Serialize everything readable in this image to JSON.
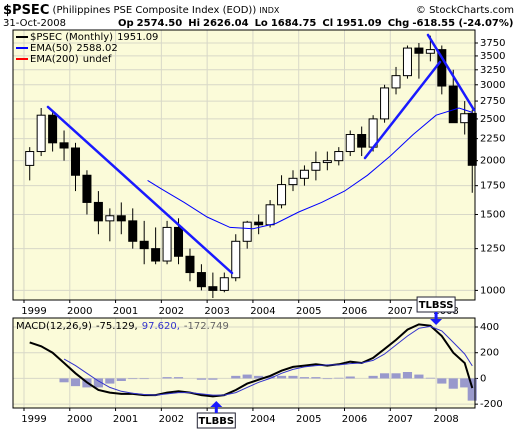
{
  "header": {
    "symbol": "$PSEC",
    "name": "(Philippines PSE Composite Index (EOD))",
    "exchange": "INDX",
    "credit": "© StockCharts.com",
    "date": "31-Oct-2008",
    "quote": [
      {
        "label": "Op",
        "value": "2574.50"
      },
      {
        "label": "Hi",
        "value": "2626.04"
      },
      {
        "label": "Lo",
        "value": "1684.75"
      },
      {
        "label": "Cl",
        "value": "1951.09"
      },
      {
        "label": "Chg",
        "value": "-618.55 (-24.07%)"
      }
    ]
  },
  "chart_data": [
    {
      "type": "candlestick",
      "log_scale": true,
      "grid": true,
      "xlim": [
        1998.76,
        2008.85
      ],
      "xticks": [
        1999,
        2000,
        2001,
        2002,
        2003,
        2004,
        2005,
        2006,
        2007,
        2008
      ],
      "ylim": [
        950,
        4020
      ],
      "yticks": [
        1000,
        1250,
        1500,
        1750,
        2000,
        2250,
        2500,
        2750,
        3000,
        3250,
        3500,
        3750
      ],
      "x": [
        1999.125,
        1999.375,
        1999.625,
        1999.875,
        2000.125,
        2000.375,
        2000.625,
        2000.875,
        2001.125,
        2001.375,
        2001.625,
        2001.875,
        2002.125,
        2002.375,
        2002.625,
        2002.875,
        2003.125,
        2003.375,
        2003.625,
        2003.875,
        2004.125,
        2004.375,
        2004.625,
        2004.875,
        2005.125,
        2005.375,
        2005.625,
        2005.875,
        2006.125,
        2006.375,
        2006.625,
        2006.875,
        2007.125,
        2007.375,
        2007.625,
        2007.875,
        2008.125,
        2008.375,
        2008.625,
        2008.79
      ],
      "open": [
        1950,
        2100,
        2550,
        2200,
        2140,
        1850,
        1600,
        1450,
        1490,
        1450,
        1300,
        1250,
        1170,
        1400,
        1200,
        1100,
        1020,
        1000,
        1070,
        1300,
        1440,
        1420,
        1580,
        1760,
        1820,
        1900,
        1980,
        2000,
        2100,
        2300,
        2150,
        2500,
        2950,
        3150,
        3650,
        3550,
        3620,
        2980,
        2450,
        2574.5
      ],
      "high": [
        2150,
        2650,
        2600,
        2350,
        2200,
        1900,
        1700,
        1550,
        1600,
        1550,
        1450,
        1400,
        1450,
        1470,
        1250,
        1150,
        1100,
        1100,
        1350,
        1450,
        1500,
        1620,
        1850,
        1900,
        1950,
        2100,
        2100,
        2150,
        2350,
        2400,
        2550,
        3000,
        3300,
        3700,
        3750,
        3900,
        3700,
        3250,
        2750,
        2626.04
      ],
      "low": [
        1800,
        2050,
        2100,
        2000,
        1700,
        1500,
        1350,
        1300,
        1350,
        1250,
        1150,
        1150,
        1150,
        1150,
        1050,
        1000,
        960,
        990,
        1050,
        1250,
        1350,
        1400,
        1550,
        1700,
        1750,
        1800,
        1900,
        1950,
        2050,
        2050,
        2100,
        2450,
        2850,
        3100,
        3100,
        3400,
        2850,
        2450,
        2300,
        1684.75
      ],
      "close": [
        2100,
        2550,
        2200,
        2140,
        1850,
        1600,
        1450,
        1490,
        1450,
        1300,
        1250,
        1170,
        1400,
        1200,
        1100,
        1020,
        1000,
        1070,
        1300,
        1440,
        1420,
        1580,
        1760,
        1820,
        1900,
        1980,
        2000,
        2100,
        2300,
        2150,
        2500,
        2950,
        3150,
        3650,
        3550,
        3620,
        2980,
        2450,
        2570,
        1951.09
      ],
      "series": [
        {
          "name": "$PSEC (Monthly)",
          "color": "#000000",
          "value_label": "1951.09"
        },
        {
          "name": "EMA(50)",
          "color": "#0000ff",
          "value_label": "2588.02",
          "x": [
            2001.7,
            2002.0,
            2002.5,
            2003.0,
            2003.5,
            2004.0,
            2004.5,
            2005.0,
            2005.5,
            2006.0,
            2006.5,
            2007.0,
            2007.5,
            2008.0,
            2008.5,
            2008.79
          ],
          "values": [
            1800,
            1720,
            1600,
            1480,
            1400,
            1390,
            1430,
            1520,
            1600,
            1700,
            1850,
            2050,
            2300,
            2550,
            2650,
            2588.02
          ]
        },
        {
          "name": "EMA(200)",
          "color": "#ff0000",
          "value_label": "undef"
        }
      ]
    },
    {
      "type": "macd",
      "grid": true,
      "xlim": [
        1998.76,
        2008.85
      ],
      "xticks": [
        1999,
        2000,
        2001,
        2002,
        2003,
        2004,
        2005,
        2006,
        2007,
        2008
      ],
      "ylim": [
        -230,
        470
      ],
      "yticks": [
        400,
        200,
        0,
        -200
      ],
      "annotations": [
        {
          "text": "TLBSS",
          "x": 2008.0
        },
        {
          "text": "TLBBS",
          "x": 2003.2
        }
      ],
      "x": [
        1999.125,
        1999.375,
        1999.625,
        1999.875,
        2000.125,
        2000.375,
        2000.625,
        2000.875,
        2001.125,
        2001.375,
        2001.625,
        2001.875,
        2002.125,
        2002.375,
        2002.625,
        2002.875,
        2003.125,
        2003.375,
        2003.625,
        2003.875,
        2004.125,
        2004.375,
        2004.625,
        2004.875,
        2005.125,
        2005.375,
        2005.625,
        2005.875,
        2006.125,
        2006.375,
        2006.625,
        2006.875,
        2007.125,
        2007.375,
        2007.625,
        2007.875,
        2008.125,
        2008.375,
        2008.625,
        2008.79
      ],
      "series": [
        {
          "name": "MACD(12,26,9)",
          "color": "#000000",
          "value_label": "-75.129,",
          "style": "line",
          "values": [
            280,
            250,
            200,
            120,
            40,
            -30,
            -90,
            -110,
            -120,
            -120,
            -130,
            -130,
            -110,
            -100,
            -110,
            -130,
            -140,
            -130,
            -90,
            -40,
            -10,
            20,
            60,
            90,
            100,
            110,
            100,
            110,
            130,
            120,
            160,
            230,
            300,
            380,
            420,
            410,
            330,
            200,
            120,
            -75.129
          ]
        },
        {
          "color": "#3333cc",
          "value_label": "97.620,",
          "style": "line",
          "values": [
            null,
            null,
            null,
            150,
            100,
            40,
            -20,
            -70,
            -100,
            -115,
            -125,
            -130,
            -120,
            -110,
            -110,
            -120,
            -130,
            -130,
            -110,
            -70,
            -30,
            0,
            40,
            70,
            90,
            100,
            105,
            105,
            115,
            120,
            140,
            190,
            260,
            330,
            390,
            405,
            370,
            280,
            190,
            97.62
          ]
        },
        {
          "color": "#9999cc",
          "value_label": "-172.749",
          "style": "histogram",
          "values": [
            null,
            null,
            null,
            -30,
            -60,
            -70,
            -70,
            -40,
            -20,
            -5,
            -5,
            0,
            10,
            10,
            0,
            -10,
            -10,
            0,
            20,
            30,
            20,
            20,
            20,
            20,
            10,
            10,
            -5,
            5,
            15,
            0,
            20,
            40,
            40,
            50,
            30,
            5,
            -40,
            -80,
            -70,
            -172.749
          ]
        }
      ]
    }
  ]
}
